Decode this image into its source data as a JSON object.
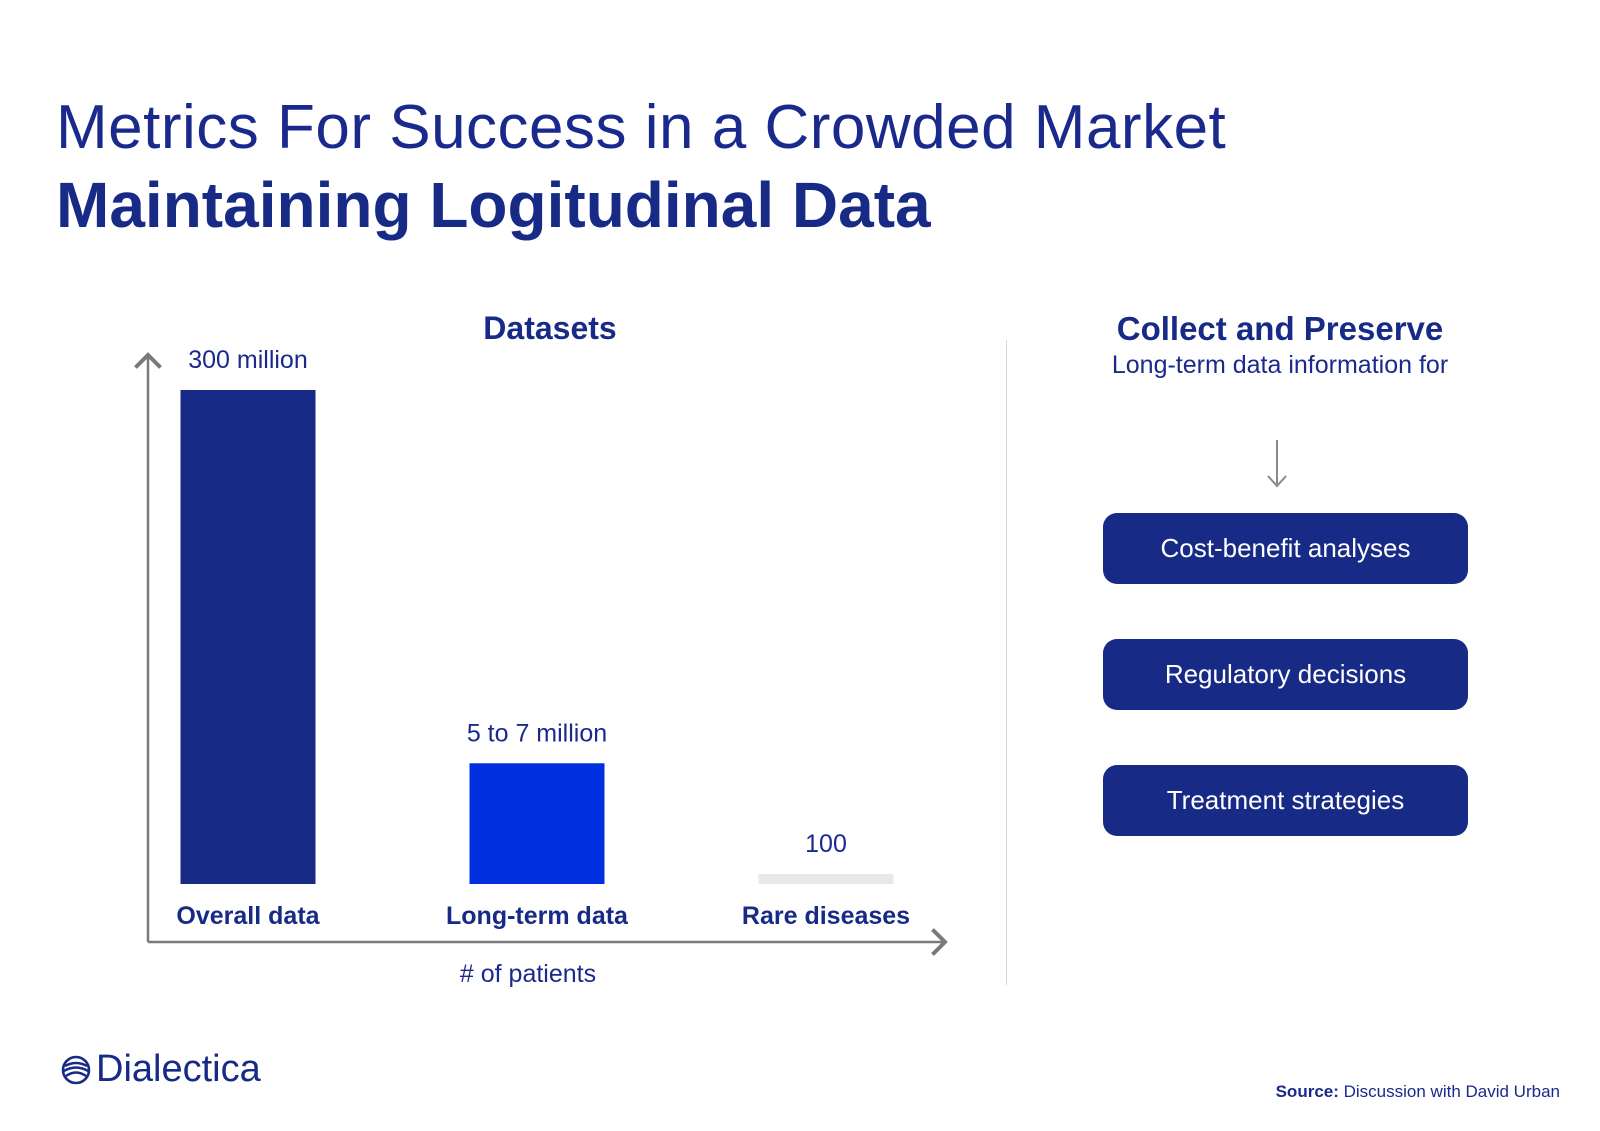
{
  "header": {
    "title": "Metrics For Success in a Crowded Market",
    "subtitle": "Maintaining Logitudinal Data"
  },
  "chart_data": {
    "type": "bar",
    "title": "Datasets",
    "xlabel": "# of patients",
    "ylabel": "",
    "categories": [
      "Overall data",
      "Long-term data",
      "Rare diseases"
    ],
    "values": [
      300000000,
      6000000,
      100
    ],
    "value_labels": [
      "300 million",
      "5 to 7 million",
      "100"
    ],
    "colors": [
      "#172a86",
      "#0030e0",
      "#e8e8ec"
    ],
    "grid": false
  },
  "right_panel": {
    "title": "Collect and Preserve",
    "subtitle": "Long-term data information for",
    "arrow_icon": "arrow-down-icon",
    "items": [
      {
        "label": "Cost-benefit analyses"
      },
      {
        "label": "Regulatory decisions"
      },
      {
        "label": "Treatment strategies"
      }
    ]
  },
  "footer": {
    "logo_text": "Dialectica",
    "source_label": "Source:",
    "source_text": "Discussion with David Urban"
  }
}
